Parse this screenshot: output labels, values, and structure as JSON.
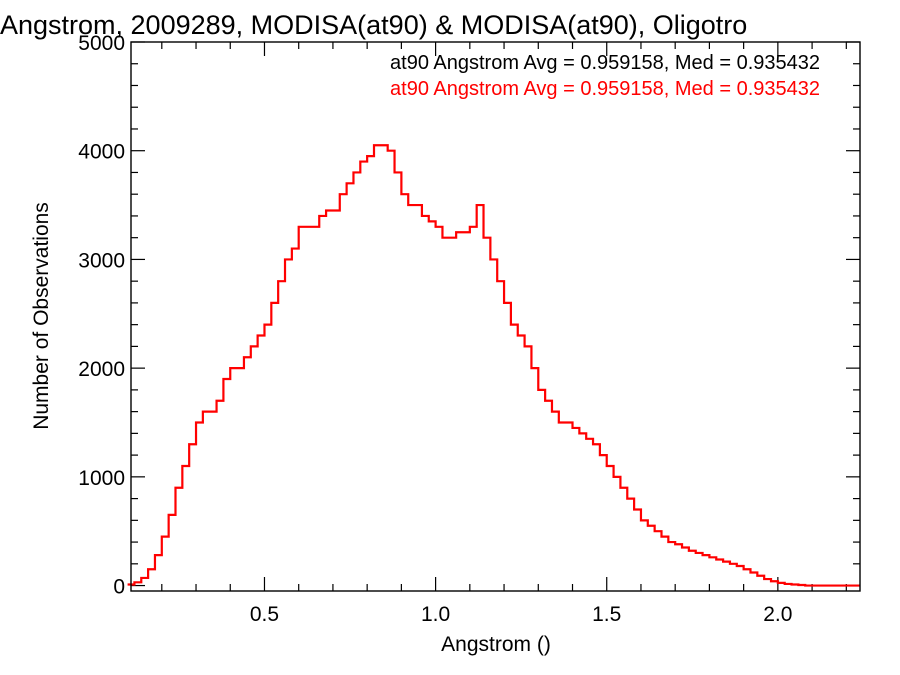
{
  "chart_data": {
    "type": "histogram",
    "title": "Angstrom, 2009289, MODISA(at90) & MODISA(at90), Oligotro",
    "xlabel": "Angstrom ()",
    "ylabel": "Number of Observations",
    "xlim": [
      0.11,
      2.24
    ],
    "ylim": [
      -50,
      5000
    ],
    "xticks": [
      0.5,
      1.0,
      1.5,
      2.0
    ],
    "xtick_labels": [
      "0.5",
      "1.0",
      "1.5",
      "2.0"
    ],
    "yticks": [
      0,
      1000,
      2000,
      3000,
      4000,
      5000
    ],
    "ytick_labels": [
      "0",
      "1000",
      "2000",
      "3000",
      "4000",
      "5000"
    ],
    "grid": false,
    "legend_position": "top-right",
    "legend": [
      {
        "text": "at90 Angstrom Avg = 0.959158, Med = 0.935432",
        "color": "#000000"
      },
      {
        "text": "at90 Angstrom Avg = 0.959158, Med = 0.935432",
        "color": "#ff0000"
      }
    ],
    "series": [
      {
        "color": "#ff0000",
        "x": [
          0.11,
          0.13,
          0.15,
          0.17,
          0.19,
          0.21,
          0.23,
          0.25,
          0.27,
          0.29,
          0.31,
          0.33,
          0.35,
          0.37,
          0.39,
          0.41,
          0.43,
          0.45,
          0.47,
          0.49,
          0.51,
          0.53,
          0.55,
          0.57,
          0.59,
          0.61,
          0.63,
          0.65,
          0.67,
          0.69,
          0.71,
          0.73,
          0.75,
          0.77,
          0.79,
          0.81,
          0.83,
          0.85,
          0.87,
          0.89,
          0.91,
          0.93,
          0.95,
          0.97,
          0.99,
          1.01,
          1.03,
          1.05,
          1.07,
          1.09,
          1.11,
          1.13,
          1.15,
          1.17,
          1.19,
          1.21,
          1.23,
          1.25,
          1.27,
          1.29,
          1.31,
          1.33,
          1.35,
          1.37,
          1.39,
          1.41,
          1.43,
          1.45,
          1.47,
          1.49,
          1.51,
          1.53,
          1.55,
          1.57,
          1.59,
          1.61,
          1.63,
          1.65,
          1.67,
          1.69,
          1.71,
          1.73,
          1.75,
          1.77,
          1.79,
          1.81,
          1.83,
          1.85,
          1.87,
          1.89,
          1.91,
          1.93,
          1.95,
          1.97,
          1.99,
          2.01,
          2.03,
          2.05,
          2.07,
          2.09,
          2.11,
          2.13,
          2.15,
          2.17,
          2.19,
          2.21,
          2.23
        ],
        "values": [
          10,
          30,
          70,
          150,
          280,
          450,
          650,
          900,
          1100,
          1300,
          1500,
          1600,
          1600,
          1700,
          1900,
          2000,
          2000,
          2100,
          2200,
          2300,
          2400,
          2600,
          2800,
          3000,
          3100,
          3300,
          3300,
          3300,
          3400,
          3450,
          3450,
          3600,
          3700,
          3800,
          3900,
          3950,
          4050,
          4050,
          4000,
          3800,
          3600,
          3500,
          3500,
          3400,
          3350,
          3300,
          3200,
          3200,
          3250,
          3250,
          3300,
          3500,
          3200,
          3000,
          2800,
          2600,
          2400,
          2300,
          2200,
          2000,
          1800,
          1700,
          1600,
          1500,
          1500,
          1450,
          1400,
          1350,
          1300,
          1200,
          1100,
          1000,
          900,
          800,
          700,
          600,
          550,
          500,
          450,
          400,
          380,
          350,
          320,
          300,
          280,
          260,
          240,
          220,
          200,
          180,
          150,
          120,
          90,
          60,
          40,
          25,
          15,
          10,
          5,
          0,
          0,
          0,
          0,
          0,
          0,
          0,
          0
        ]
      }
    ]
  }
}
